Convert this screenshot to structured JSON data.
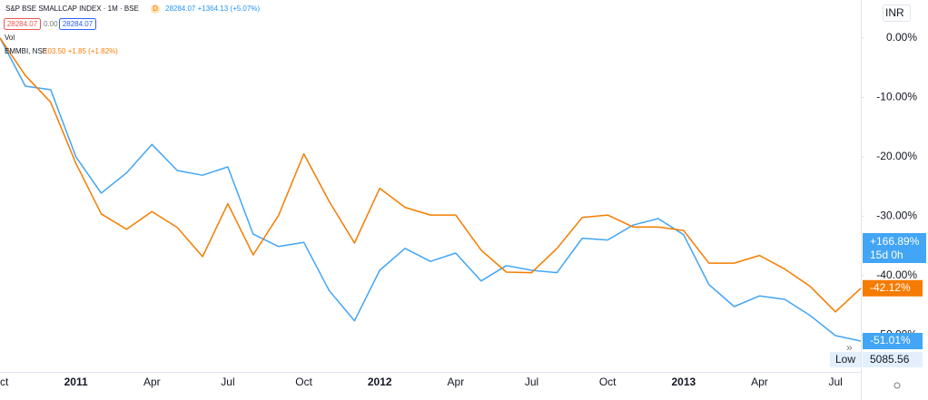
{
  "chart_data": {
    "type": "line",
    "header": {
      "symbol": "S&P BSE SMALLCAP INDEX · 1M · BSE",
      "flag": "D",
      "quote": "28284.07 +1364.13 (+5.07%)",
      "bid": "28284.07",
      "spread": "0.00",
      "ask": "28284.07",
      "volume_label": "Vol",
      "compare_quote": "103.50 +1.85 (+1.82%)",
      "currency": "INR"
    },
    "categories": [
      "Oct",
      null,
      null,
      "2011",
      null,
      null,
      "Apr",
      null,
      null,
      "Jul",
      null,
      null,
      "Oct",
      null,
      null,
      "2012",
      null,
      null,
      "Apr",
      null,
      null,
      "Jul",
      null,
      null,
      "Oct",
      null,
      null,
      "2013",
      null,
      null,
      "Apr",
      null,
      null,
      "Jul",
      null
    ],
    "bold_categories": [
      "2011",
      "2012",
      "2013"
    ],
    "series": [
      {
        "name": "S&P BSE SMALLCAP INDEX",
        "color": "#42a5f5",
        "values": [
          0,
          -8.1,
          -8.7,
          -20.0,
          -26.1,
          -22.7,
          -17.9,
          -22.3,
          -23.1,
          -21.7,
          -33.0,
          -35.1,
          -34.4,
          -42.5,
          -47.6,
          -39.1,
          -35.4,
          -37.6,
          -36.2,
          -40.9,
          -38.3,
          -39.1,
          -39.5,
          -33.7,
          -34.0,
          -31.5,
          -30.4,
          -33.1,
          -41.5,
          -45.2,
          -43.4,
          -44.0,
          -46.7,
          -50.1,
          -51.01
        ],
        "value_labels": [
          null,
          null,
          null,
          null,
          null,
          null,
          null,
          null,
          null,
          null,
          null,
          null,
          null,
          null,
          null,
          null,
          null,
          null,
          null,
          null,
          null,
          null,
          null,
          null,
          null,
          null,
          null,
          null,
          null,
          null,
          null,
          null,
          null,
          null,
          "-51.01%"
        ]
      },
      {
        "name": "EMMBI, NSE",
        "color": "#f57c00",
        "values": [
          0,
          -6.3,
          -10.8,
          -21.1,
          -29.6,
          -32.2,
          -29.2,
          -31.9,
          -36.8,
          -27.9,
          -36.5,
          -29.9,
          -19.5,
          -27.5,
          -34.5,
          -25.3,
          -28.5,
          -29.8,
          -29.8,
          -35.7,
          -39.4,
          -39.5,
          -35.4,
          -30.2,
          -29.8,
          -31.8,
          -31.8,
          -32.4,
          -37.9,
          -37.9,
          -36.6,
          -38.9,
          -41.8,
          -46.1,
          -42.12
        ],
        "value_labels": [
          null,
          null,
          null,
          null,
          null,
          null,
          null,
          null,
          null,
          null,
          null,
          null,
          null,
          null,
          null,
          null,
          null,
          null,
          null,
          null,
          null,
          null,
          null,
          null,
          null,
          null,
          null,
          null,
          null,
          null,
          null,
          null,
          null,
          null,
          "-42.12%"
        ]
      }
    ],
    "ylim": [
      -56.2,
      6.4
    ],
    "yticks": [
      {
        "value": 0,
        "label": "0.00%"
      },
      {
        "value": -10,
        "label": "-10.00%"
      },
      {
        "value": -20,
        "label": "-20.00%"
      },
      {
        "value": -30,
        "label": "-30.00%"
      },
      {
        "value": -40,
        "label": "-40.00%"
      },
      {
        "value": -50,
        "label": "-50.00%"
      }
    ],
    "grid": false,
    "badge": {
      "change": "+166.89%",
      "countdown": "15d 0h"
    },
    "low": {
      "label": "Low",
      "value": "5085.56"
    }
  }
}
